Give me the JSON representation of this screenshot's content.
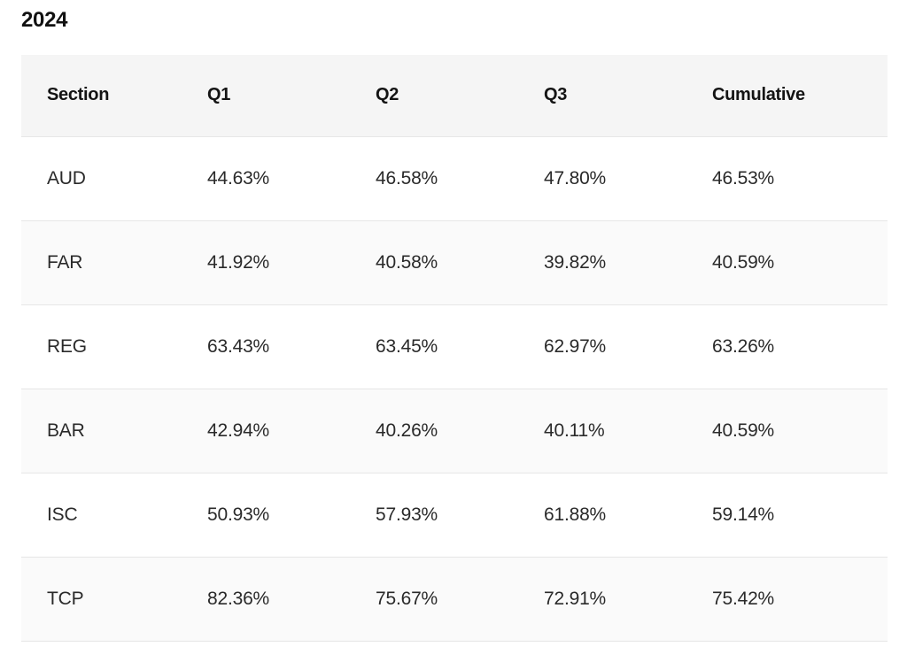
{
  "heading": "2024",
  "table": {
    "headers": [
      "Section",
      "Q1",
      "Q2",
      "Q3",
      "Cumulative"
    ],
    "rows": [
      [
        "AUD",
        "44.63%",
        "46.58%",
        "47.80%",
        "46.53%"
      ],
      [
        "FAR",
        "41.92%",
        "40.58%",
        "39.82%",
        "40.59%"
      ],
      [
        "REG",
        "63.43%",
        "63.45%",
        "62.97%",
        "63.26%"
      ],
      [
        "BAR",
        "42.94%",
        "40.26%",
        "40.11%",
        "40.59%"
      ],
      [
        "ISC",
        "50.93%",
        "57.93%",
        "61.88%",
        "59.14%"
      ],
      [
        "TCP",
        "82.36%",
        "75.67%",
        "72.91%",
        "75.42%"
      ]
    ]
  }
}
